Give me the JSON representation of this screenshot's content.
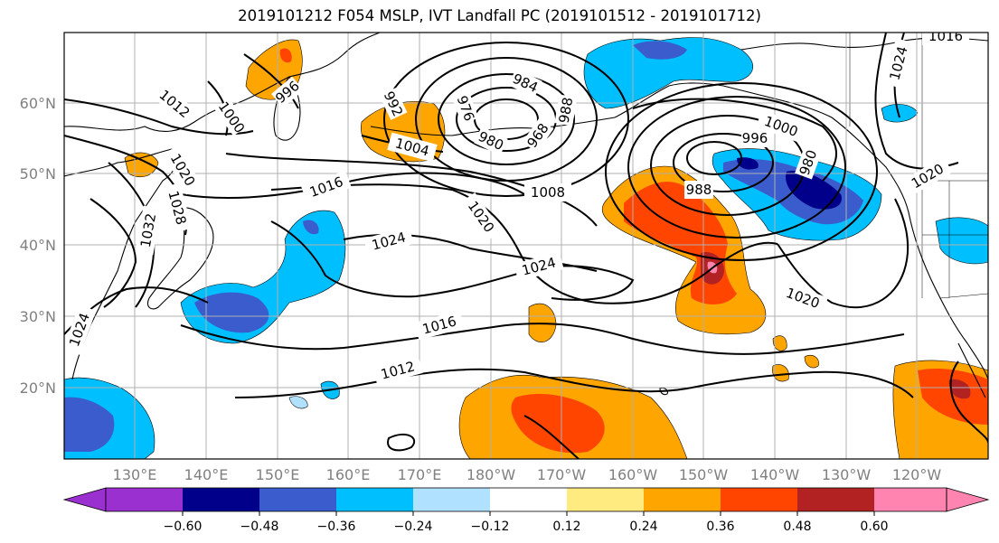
{
  "title": "2019101212 F054 MSLP, IVT Landfall PC (2019101512 - 2019101712)",
  "lat_labels": [
    "60°N",
    "50°N",
    "40°N",
    "30°N",
    "20°N"
  ],
  "lon_labels": [
    "130°E",
    "140°E",
    "150°E",
    "160°E",
    "170°E",
    "180°W",
    "170°W",
    "160°W",
    "150°W",
    "140°W",
    "130°W",
    "120°W"
  ],
  "isobar_labels": [
    "1012",
    "1000",
    "996",
    "992",
    "984",
    "976",
    "980",
    "968",
    "988",
    "1004",
    "1016",
    "1020",
    "1024",
    "1028",
    "1032",
    "1008",
    "1024",
    "1020",
    "1016",
    "1012",
    "1000",
    "996",
    "988",
    "980",
    "1020",
    "1020",
    "1024",
    "1024",
    "1016"
  ],
  "colorbar": {
    "ticks": [
      "−0.60",
      "−0.48",
      "−0.36",
      "−0.24",
      "−0.12",
      "0.12",
      "0.24",
      "0.36",
      "0.48",
      "0.60"
    ],
    "colors": [
      "#9b30d0",
      "#00008b",
      "#3a5ccc",
      "#00bfff",
      "#b0e2ff",
      "#ffffff",
      "#ffeb80",
      "#ffa500",
      "#ff4500",
      "#b22222",
      "#ff85b0"
    ]
  }
}
